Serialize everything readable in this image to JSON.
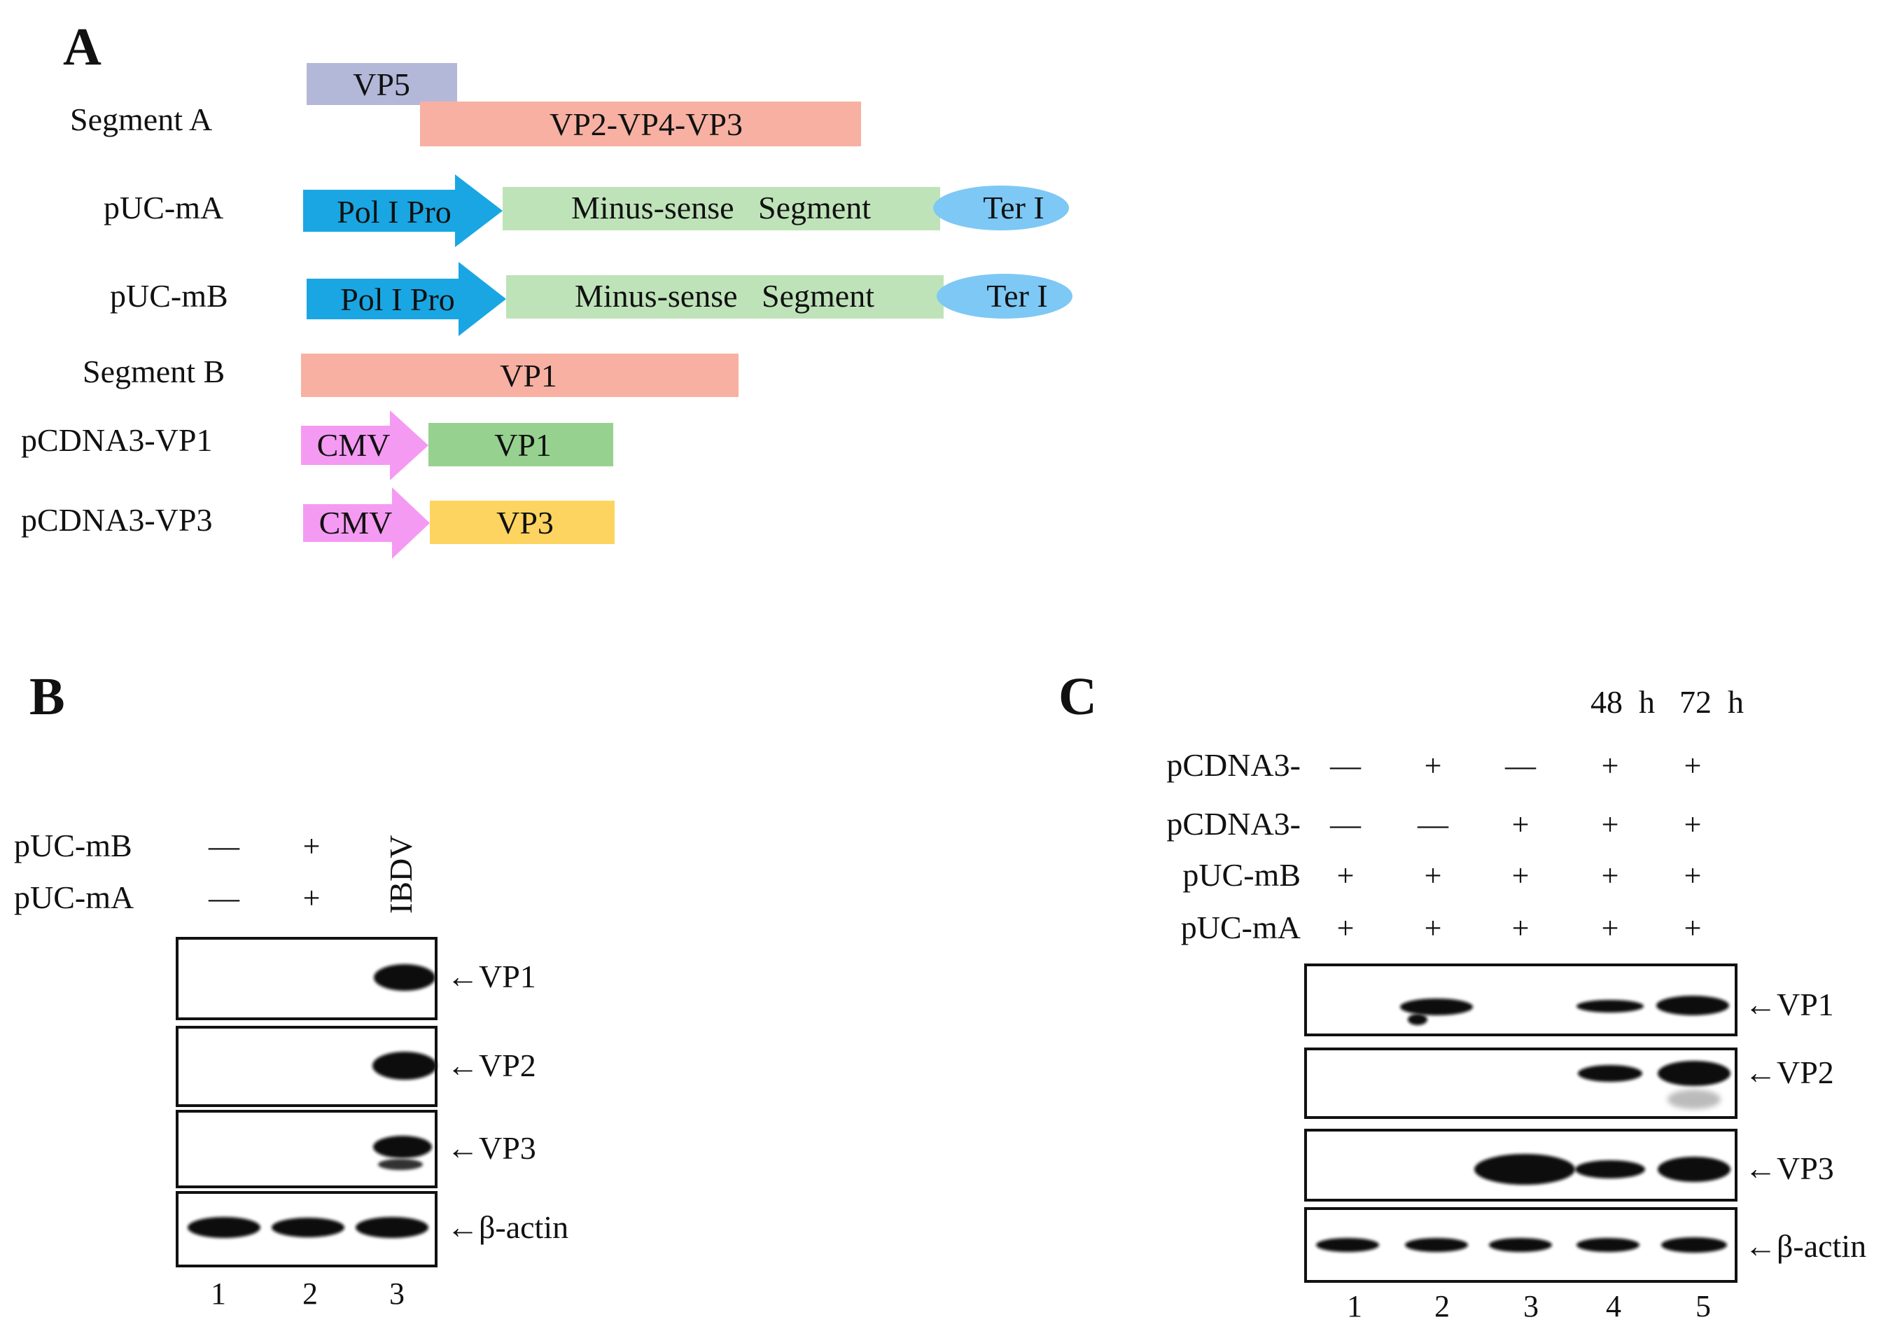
{
  "panels": {
    "A": {
      "label": "A",
      "segment_a": {
        "label": "Segment A",
        "vp5": "VP5",
        "polyprotein": "VP2-VP4-VP3"
      },
      "puc_ma": {
        "label": "pUC-mA",
        "promoter": "Pol I Pro",
        "segment": "Minus-sense   Segment",
        "terminator": "Ter I"
      },
      "puc_mb": {
        "label": "pUC-mB",
        "promoter": "Pol I Pro",
        "segment": "Minus-sense   Segment",
        "terminator": "Ter I"
      },
      "segment_b": {
        "label": "Segment B",
        "vp1": "VP1"
      },
      "pcdna3_vp1": {
        "label": "pCDNA3-VP1",
        "promoter": "CMV",
        "gene": "VP1"
      },
      "pcdna3_vp3": {
        "label": "pCDNA3-VP3",
        "promoter": "CMV",
        "gene": "VP3"
      },
      "colors": {
        "vp5": "#b3b8d8",
        "segment": "#f7b0a2",
        "pol_promoter": "#1aa6e3",
        "minus_sense": "#bfe3b9",
        "terminator": "#7dc8f5",
        "cmv": "#f59af2",
        "vp1_gene": "#96d18f",
        "vp3_gene": "#fcd45f"
      }
    },
    "B": {
      "label": "B",
      "row_labels": [
        "pUC-mB",
        "pUC-mA"
      ],
      "lanes": [
        {
          "number": "1",
          "marks": [
            "—",
            "—"
          ]
        },
        {
          "number": "2",
          "marks": [
            "+",
            "+"
          ]
        },
        {
          "number": "3",
          "vertical_label": "IBDV"
        }
      ],
      "blots": [
        "←VP1",
        "←VP2",
        "←VP3",
        "←β-actin"
      ]
    },
    "C": {
      "label": "C",
      "time_labels": [
        "48  h",
        "72  h"
      ],
      "row_labels": [
        "pCDNA3-",
        "pCDNA3-",
        "pUC-mB",
        "pUC-mA"
      ],
      "lanes": [
        {
          "number": "1",
          "marks": [
            "—",
            "—",
            "+",
            "+"
          ]
        },
        {
          "number": "2",
          "marks": [
            "+",
            "—",
            "+",
            "+"
          ]
        },
        {
          "number": "3",
          "marks": [
            "—",
            "+",
            "+",
            "+"
          ]
        },
        {
          "number": "4",
          "marks": [
            "+",
            "+",
            "+",
            "+"
          ]
        },
        {
          "number": "5",
          "marks": [
            "+",
            "+",
            "+",
            "+"
          ]
        }
      ],
      "blots": [
        "←VP1",
        "←VP2",
        "←VP3",
        "←β-actin"
      ]
    }
  }
}
